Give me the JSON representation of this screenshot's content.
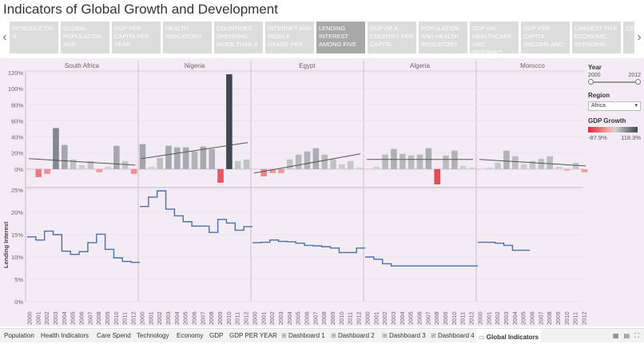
{
  "page_title": "Indicators of Global Growth and Development",
  "story_tabs": [
    "INTRODUCTIO N",
    "GLOBAL POPULATION AND",
    "GDP PER CAPITA PER YEAR",
    "HEALTH INDICATORS",
    "COUNTRIES SPENDING MORE THAN 9",
    "INTERNET AND MOBILE USAGE PER",
    "LENDING INTEREST AMONG FIVE",
    "GDP OF A COUNTRY PER CAPITA",
    "POPULATION AND HEALTH INDICATORS",
    "GDP ON HEALTHCARE AND INTERNET",
    "GDP PER CAPITA (INCOME AND",
    "LARGEST FIVE ECONOMIC SPENDING",
    "CO"
  ],
  "active_story_tab": 6,
  "sidebar": {
    "year_label": "Year",
    "year_min": "2000",
    "year_max": "2012",
    "region_label": "Region",
    "region_value": "Africa",
    "legend_title": "GDP Growth",
    "legend_min": "-87.9%",
    "legend_max": "118.3%"
  },
  "bottom_tabs": [
    {
      "label": "Population",
      "icon": ""
    },
    {
      "label": "Health Indicators",
      "icon": ""
    },
    {
      "label": "Care Spend",
      "icon": ""
    },
    {
      "label": "Technology",
      "icon": ""
    },
    {
      "label": "Economy",
      "icon": ""
    },
    {
      "label": "GDP",
      "icon": ""
    },
    {
      "label": "GDP PER YEAR",
      "icon": ""
    },
    {
      "label": "Dashboard 1",
      "icon": "grid-icon"
    },
    {
      "label": "Dashboard 2",
      "icon": "grid-icon"
    },
    {
      "label": "Dashboard 3",
      "icon": "grid-icon"
    },
    {
      "label": "Dashboard 4",
      "icon": "grid-icon"
    },
    {
      "label": "Global Indicators",
      "icon": "book-icon"
    }
  ],
  "active_bottom_tab": 11,
  "chart_data": [
    {
      "type": "bar",
      "title": "",
      "ylabel": "",
      "ylim": [
        -20,
        120
      ],
      "yticks": [
        "120%",
        "100%",
        "80%",
        "60%",
        "40%",
        "20%",
        "0%"
      ],
      "x": [
        "2000",
        "2001",
        "2002",
        "2003",
        "2004",
        "2005",
        "2006",
        "2007",
        "2008",
        "2009",
        "2010",
        "2011",
        "2012"
      ],
      "color_scale": {
        "min": -87.9,
        "max": 118.3,
        "low": "#e0293a",
        "high": "#3f4752"
      },
      "series": [
        {
          "name": "South Africa",
          "values": [
            0,
            -10,
            -6,
            51,
            30,
            12,
            5,
            10,
            -4,
            3,
            29,
            10,
            -6
          ],
          "trend": [
            13,
            5
          ]
        },
        {
          "name": "Nigeria",
          "values": [
            31,
            3,
            14,
            29,
            27,
            27,
            22,
            28,
            25,
            -17,
            118,
            10,
            12
          ],
          "trend": [
            13,
            33
          ]
        },
        {
          "name": "Egypt",
          "values": [
            0,
            -9,
            -5,
            -5,
            12,
            18,
            22,
            26,
            18,
            12,
            6,
            10,
            2
          ],
          "trend": [
            -5,
            19
          ]
        },
        {
          "name": "Algeria",
          "values": [
            0,
            3,
            18,
            25,
            19,
            17,
            18,
            26,
            -19,
            17,
            23,
            4,
            2
          ],
          "trend": [
            12,
            12
          ]
        },
        {
          "name": "Morocco",
          "values": [
            0,
            2,
            8,
            23,
            16,
            6,
            10,
            13,
            16,
            3,
            -2,
            8,
            -4
          ],
          "trend": [
            12,
            4
          ]
        }
      ]
    },
    {
      "type": "line",
      "title": "",
      "ylabel": "Lending Interest",
      "ylim": [
        0,
        25
      ],
      "yticks": [
        "25%",
        "20%",
        "15%",
        "10%",
        "5%",
        "0%"
      ],
      "x": [
        "2000",
        "2001",
        "2002",
        "2003",
        "2004",
        "2005",
        "2006",
        "2007",
        "2008",
        "2009",
        "2010",
        "2011",
        "2012"
      ],
      "series": [
        {
          "name": "South Africa",
          "values": [
            14.5,
            13.8,
            15.8,
            15.0,
            11.3,
            10.6,
            11.2,
            13.2,
            15.1,
            11.7,
            9.8,
            9.0,
            8.8
          ]
        },
        {
          "name": "Nigeria",
          "values": [
            21.3,
            23.4,
            24.8,
            20.7,
            19.2,
            17.9,
            16.9,
            16.9,
            15.5,
            18.4,
            17.6,
            16.0,
            16.8
          ]
        },
        {
          "name": "Egypt",
          "values": [
            13.2,
            13.3,
            13.8,
            13.5,
            13.4,
            13.1,
            12.6,
            12.5,
            12.3,
            12.0,
            11.0,
            11.0,
            12.0
          ]
        },
        {
          "name": "Algeria",
          "values": [
            10.0,
            9.5,
            8.5,
            8.0,
            8.0,
            8.0,
            8.0,
            8.0,
            8.0,
            8.0,
            8.0,
            8.0,
            8.0
          ]
        },
        {
          "name": "Morocco",
          "values": [
            13.3,
            13.3,
            13.1,
            12.6,
            11.5,
            11.5,
            null,
            null,
            null,
            null,
            null,
            null,
            null
          ]
        }
      ]
    }
  ]
}
